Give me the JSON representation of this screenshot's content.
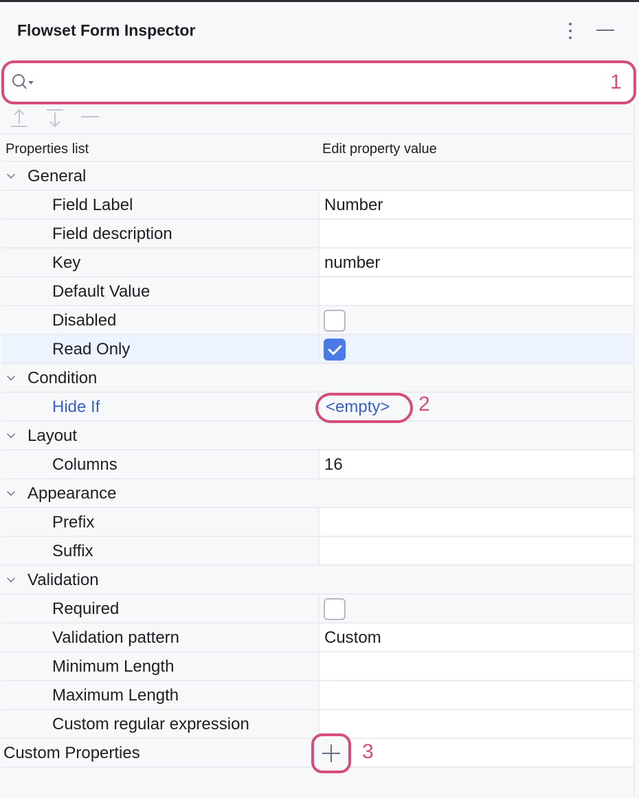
{
  "window": {
    "title": "Flowset Form Inspector"
  },
  "search": {
    "value": "",
    "placeholder": ""
  },
  "annotations": [
    "1",
    "2",
    "3"
  ],
  "table": {
    "col_properties": "Properties list",
    "col_value": "Edit property value"
  },
  "rows": [
    {
      "type": "group",
      "label": "General"
    },
    {
      "type": "text",
      "label": "Field Label",
      "value": "Number"
    },
    {
      "type": "text",
      "label": "Field description",
      "value": ""
    },
    {
      "type": "text",
      "label": "Key",
      "value": "number"
    },
    {
      "type": "text",
      "label": "Default Value",
      "value": ""
    },
    {
      "type": "checkbox",
      "label": "Disabled",
      "checked": false
    },
    {
      "type": "checkbox",
      "label": "Read Only",
      "checked": true,
      "selected": true
    },
    {
      "type": "group",
      "label": "Condition"
    },
    {
      "type": "link",
      "label": "Hide If",
      "value": "<empty>"
    },
    {
      "type": "group",
      "label": "Layout"
    },
    {
      "type": "text",
      "label": "Columns",
      "value": "16"
    },
    {
      "type": "group",
      "label": "Appearance"
    },
    {
      "type": "text",
      "label": "Prefix",
      "value": ""
    },
    {
      "type": "text",
      "label": "Suffix",
      "value": ""
    },
    {
      "type": "group",
      "label": "Validation"
    },
    {
      "type": "checkbox",
      "label": "Required",
      "checked": false
    },
    {
      "type": "text",
      "label": "Validation pattern",
      "value": "Custom"
    },
    {
      "type": "text",
      "label": "Minimum Length",
      "value": ""
    },
    {
      "type": "text",
      "label": "Maximum Length",
      "value": ""
    },
    {
      "type": "text",
      "label": "Custom regular expression",
      "value": ""
    },
    {
      "type": "add",
      "label": "Custom Properties"
    }
  ],
  "colors": {
    "accent": "#4a7ae8",
    "annotation": "#d64d7c",
    "link": "#3a62c4"
  }
}
